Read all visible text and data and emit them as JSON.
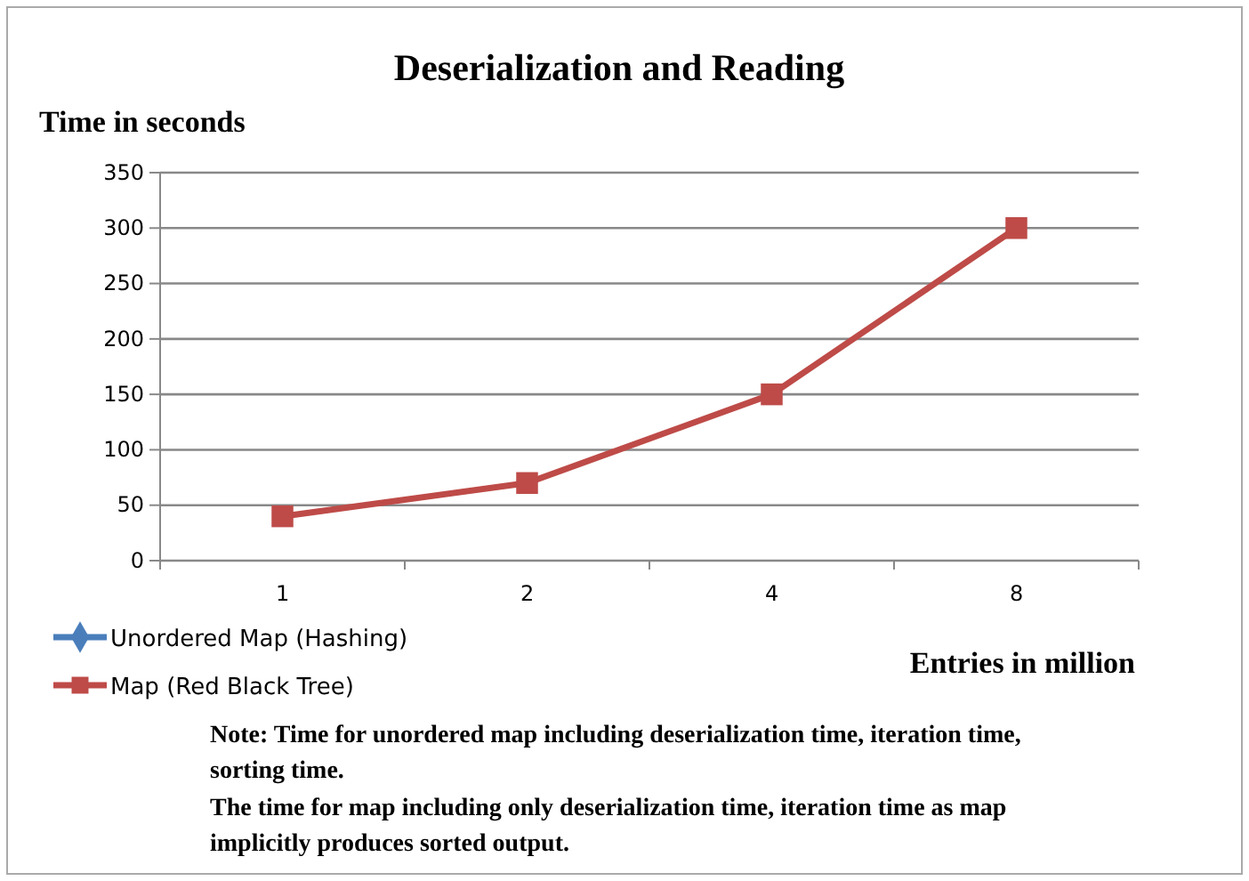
{
  "chart_data": {
    "type": "line",
    "title": "Deserialization and Reading",
    "ylabel": "Time in seconds",
    "xlabel": "Entries in million",
    "categories": [
      "1",
      "2",
      "4",
      "8"
    ],
    "series": [
      {
        "name": "Unordered Map (Hashing)",
        "color": "#4a7ebb",
        "marker": "diamond",
        "values": [
          null,
          null,
          null,
          null
        ]
      },
      {
        "name": "Map (Red Black Tree)",
        "color": "#be4b48",
        "marker": "square",
        "values": [
          40,
          70,
          150,
          300
        ]
      }
    ],
    "ylim": [
      0,
      350
    ],
    "yticks": [
      0,
      50,
      100,
      150,
      200,
      250,
      300,
      350
    ],
    "grid": "y",
    "legend": "bottom left",
    "annotations": [
      "Note: Time for unordered map including deserialization time, iteration time, sorting time.",
      "The time for map including only deserialization time, iteration time as map implicitly produces sorted output."
    ]
  }
}
